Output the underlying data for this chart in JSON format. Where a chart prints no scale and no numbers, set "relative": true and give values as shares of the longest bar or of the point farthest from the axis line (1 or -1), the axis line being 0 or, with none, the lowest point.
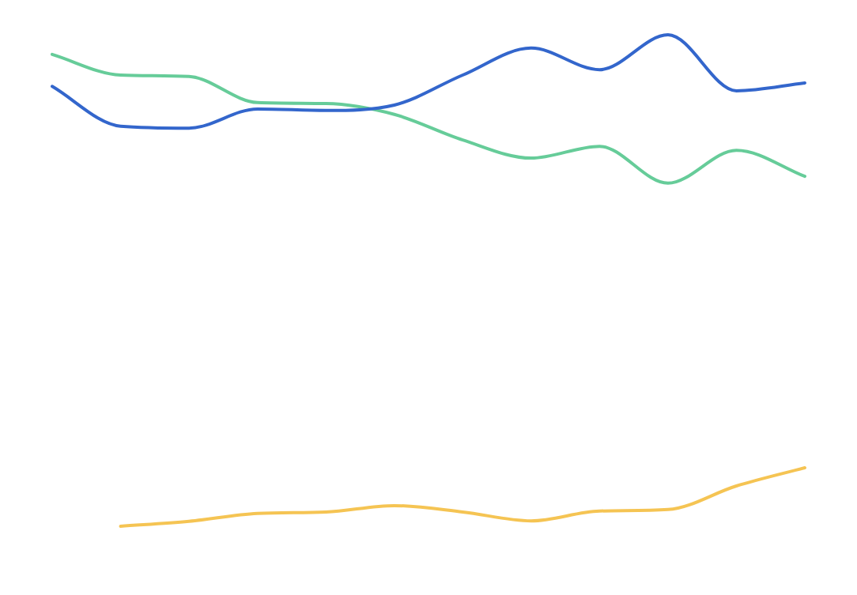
{
  "chart_data": {
    "type": "line",
    "relative": true,
    "marker": "none",
    "legend": false,
    "categories": [
      null,
      null,
      null,
      null,
      null,
      null,
      null,
      null,
      null,
      null,
      null,
      null
    ],
    "series": [
      {
        "color": "#3366cc",
        "values": [
          0.895,
          0.814,
          0.81,
          0.849,
          0.846,
          0.857,
          0.918,
          0.973,
          0.929,
          1,
          0.886,
          0.902
        ]
      },
      {
        "color": "#66cc99",
        "values": [
          0.96,
          0.918,
          0.915,
          0.862,
          0.86,
          0.838,
          0.786,
          0.749,
          0.773,
          0.698,
          0.765,
          0.712
        ]
      },
      {
        "color": "#f5c453",
        "values": [
          null,
          0,
          0.01,
          0.026,
          0.029,
          0.042,
          0.029,
          0.011,
          0.031,
          0.034,
          0.082,
          0.119
        ]
      }
    ]
  }
}
